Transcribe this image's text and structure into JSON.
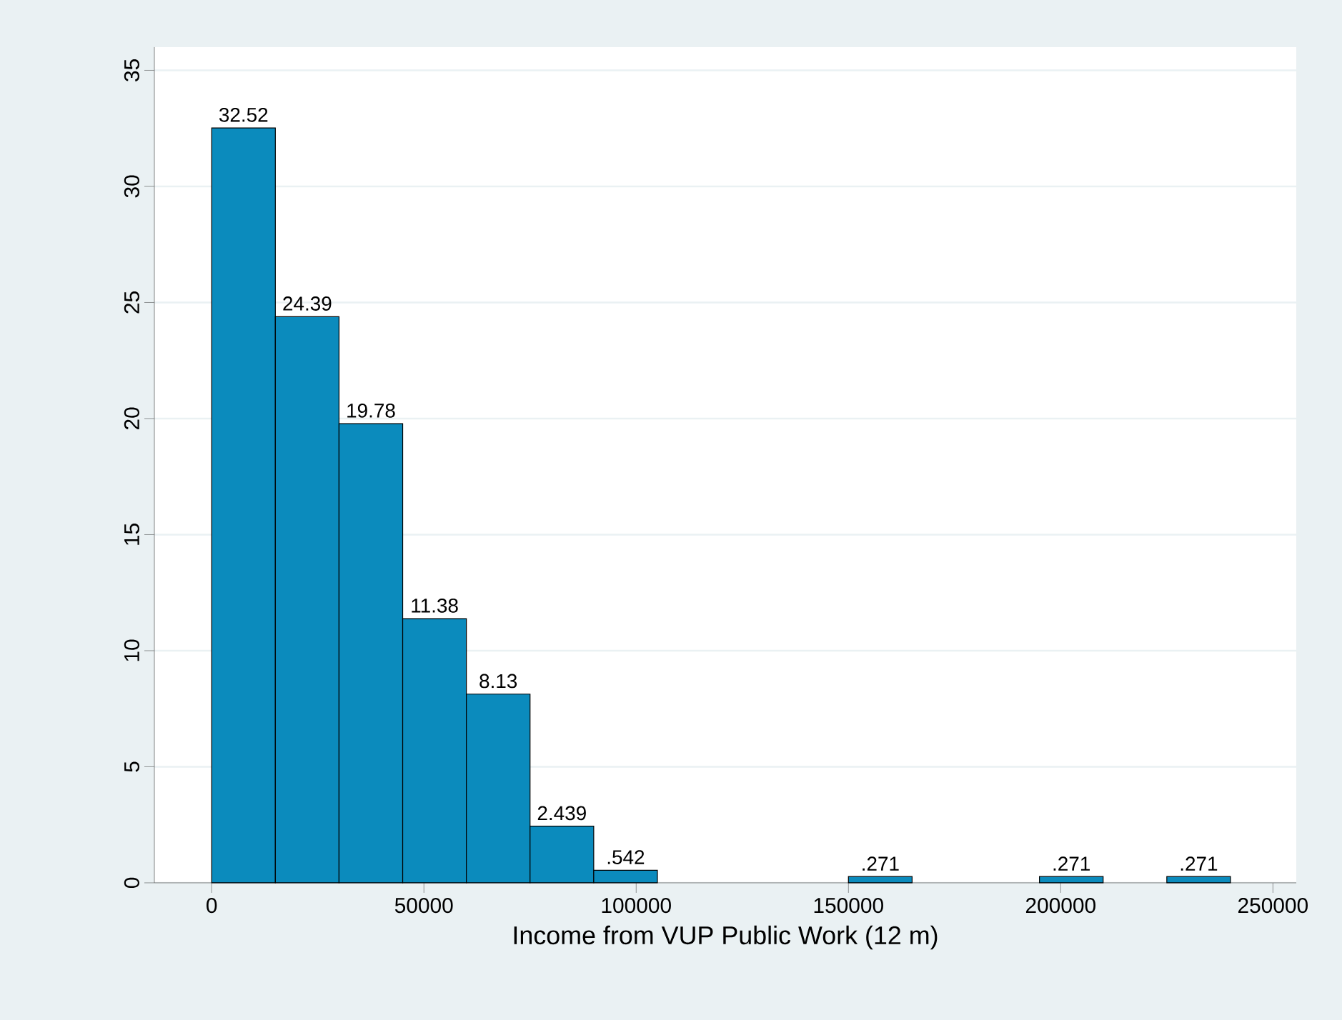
{
  "chart_data": {
    "type": "histogram",
    "xlabel": "Income from VUP Public Work (12 m)",
    "bins": [
      0,
      15000,
      30000,
      45000,
      60000,
      75000,
      90000,
      105000,
      120000,
      135000,
      150000,
      165000,
      180000,
      195000,
      210000,
      225000,
      240000
    ],
    "values": [
      32.52,
      24.39,
      19.78,
      11.38,
      8.13,
      2.439,
      0.542,
      0,
      0,
      0,
      0.271,
      0,
      0,
      0.271,
      0,
      0.271
    ],
    "value_labels": [
      "32.52",
      "24.39",
      "19.78",
      "11.38",
      "8.13",
      "2.439",
      ".542",
      null,
      null,
      null,
      ".271",
      null,
      null,
      ".271",
      null,
      ".271"
    ],
    "color": "#0b8bbd",
    "xlim": [
      -13500,
      255500
    ],
    "ylim": [
      0,
      36
    ],
    "xticks": [
      0,
      50000,
      100000,
      150000,
      200000,
      250000
    ],
    "yticks": [
      0,
      5,
      10,
      15,
      20,
      25,
      30,
      35
    ],
    "grid": "y"
  }
}
